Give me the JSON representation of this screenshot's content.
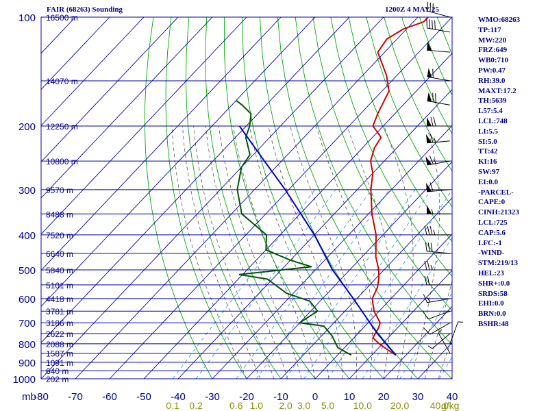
{
  "header": {
    "title": "FAIR (68263) Sounding",
    "datetime": "1200Z  4 MAY 25"
  },
  "indices": [
    "WMO:68263",
    "TP:117",
    "MW:220",
    "FRZ:649",
    "WB0:710",
    "PW:0.47",
    "RH:39.0",
    "MAXT:17.2",
    "TH:5639",
    "L57:5.4",
    "LCL:748",
    "LI:5.5",
    "SI:5.0",
    "TT:42",
    "KI:16",
    "SW:97",
    "EI:0.0",
    "-PARCEL-",
    "CAPE:0",
    "CINH:21323",
    "LCL:725",
    "CAP:5.6",
    "LFC:-1",
    "-WIND-",
    "STM:219/13",
    "HEL:23",
    "SHR+:0.0",
    "SRDS:58",
    "EHI:0.0",
    "BRN:0.0",
    "BSHR:48"
  ],
  "colors": {
    "grid": "#0000aa",
    "dry_adiabats": "#00aa00",
    "moist_adiabats": "#555555",
    "mixing_ratio": "#3399ff",
    "temperature": "#cc0000",
    "dewpoint": "#005500",
    "parcel": "#0000cc",
    "wind": "#000000",
    "text": "#00008b",
    "mr_labels": "#8b8b00"
  },
  "chart_data": {
    "type": "line",
    "title": "FAIR (68263) Sounding",
    "pressure_unit_label": "mb",
    "pressure_ticks": [
      100,
      200,
      300,
      400,
      500,
      600,
      700,
      800,
      900,
      1000
    ],
    "temperature_ticks": [
      -80,
      -70,
      -60,
      -50,
      -40,
      -30,
      -20,
      -10,
      0,
      10,
      20,
      30,
      40
    ],
    "xlim": [
      -80,
      40
    ],
    "ylim": [
      1000,
      100
    ],
    "y_scale": "log",
    "skew_degC_per_decade": 100,
    "height_labels": [
      {
        "p": 100,
        "label": "16500 m"
      },
      {
        "p": 150,
        "label": "14070 m"
      },
      {
        "p": 200,
        "label": "12250 m"
      },
      {
        "p": 250,
        "label": "10800 m"
      },
      {
        "p": 300,
        "label": "9570 m"
      },
      {
        "p": 350,
        "label": "8488 m"
      },
      {
        "p": 400,
        "label": "7520 m"
      },
      {
        "p": 450,
        "label": "6640 m"
      },
      {
        "p": 500,
        "label": "5840 m"
      },
      {
        "p": 550,
        "label": "5101 m"
      },
      {
        "p": 600,
        "label": "4418 m"
      },
      {
        "p": 650,
        "label": "3781 m"
      },
      {
        "p": 700,
        "label": "3186 m"
      },
      {
        "p": 750,
        "label": "2622 m"
      },
      {
        "p": 800,
        "label": "2088 m"
      },
      {
        "p": 850,
        "label": "1587 m"
      },
      {
        "p": 900,
        "label": "1091 m"
      },
      {
        "p": 950,
        "label": "640 m"
      },
      {
        "p": 1000,
        "label": "202 m"
      }
    ],
    "mixing_ratio_labels": [
      {
        "w": 0.1,
        "label": "0.1"
      },
      {
        "w": 0.2,
        "label": "0.2"
      },
      {
        "w": 0.6,
        "label": "0.6"
      },
      {
        "w": 1.0,
        "label": "1.0"
      },
      {
        "w": 2.0,
        "label": "2.0"
      },
      {
        "w": 3.0,
        "label": "3.0"
      },
      {
        "w": 5.0,
        "label": "5.0"
      },
      {
        "w": 10.0,
        "label": "10.0"
      },
      {
        "w": 20.0,
        "label": "20.0"
      },
      {
        "w": 40.0,
        "label": "40.0"
      }
    ],
    "mixing_ratio_unit": "g/kg",
    "series": [
      {
        "key": "temperature",
        "points": [
          {
            "p": 860,
            "t": 17.0
          },
          {
            "p": 830,
            "t": 13.0
          },
          {
            "p": 800,
            "t": 9.0
          },
          {
            "p": 770,
            "t": 5.5
          },
          {
            "p": 725,
            "t": 4.5
          },
          {
            "p": 700,
            "t": 3.5
          },
          {
            "p": 650,
            "t": -1.5
          },
          {
            "p": 600,
            "t": -5.5
          },
          {
            "p": 560,
            "t": -7.0
          },
          {
            "p": 530,
            "t": -9.0
          },
          {
            "p": 500,
            "t": -11.5
          },
          {
            "p": 460,
            "t": -16.0
          },
          {
            "p": 400,
            "t": -22.0
          },
          {
            "p": 350,
            "t": -29.0
          },
          {
            "p": 300,
            "t": -36.0
          },
          {
            "p": 270,
            "t": -40.0
          },
          {
            "p": 250,
            "t": -44.0
          },
          {
            "p": 230,
            "t": -46.5
          },
          {
            "p": 215,
            "t": -47.5
          },
          {
            "p": 200,
            "t": -53.0
          },
          {
            "p": 185,
            "t": -55.0
          },
          {
            "p": 160,
            "t": -58.0
          },
          {
            "p": 145,
            "t": -63.0
          },
          {
            "p": 125,
            "t": -72.0
          },
          {
            "p": 115,
            "t": -73.0
          },
          {
            "p": 108,
            "t": -71.0
          },
          {
            "p": 103,
            "t": -67.0
          },
          {
            "p": 100,
            "t": -67.0
          }
        ]
      },
      {
        "key": "dewpoint",
        "points": [
          {
            "p": 860,
            "t": 4.0
          },
          {
            "p": 820,
            "t": -2.0
          },
          {
            "p": 760,
            "t": -7.0
          },
          {
            "p": 715,
            "t": -12.0
          },
          {
            "p": 700,
            "t": -20.0
          },
          {
            "p": 650,
            "t": -18.0
          },
          {
            "p": 610,
            "t": -23.0
          },
          {
            "p": 580,
            "t": -32.0
          },
          {
            "p": 530,
            "t": -41.5
          },
          {
            "p": 515,
            "t": -51.0
          },
          {
            "p": 490,
            "t": -32.0
          },
          {
            "p": 470,
            "t": -40.0
          },
          {
            "p": 440,
            "t": -50.0
          },
          {
            "p": 400,
            "t": -54.0
          },
          {
            "p": 350,
            "t": -67.0
          },
          {
            "p": 300,
            "t": -75.0
          },
          {
            "p": 260,
            "t": -80.0
          },
          {
            "p": 240,
            "t": -81.0
          },
          {
            "p": 215,
            "t": -87.0
          },
          {
            "p": 200,
            "t": -89.0
          },
          {
            "p": 185,
            "t": -92.0
          },
          {
            "p": 175,
            "t": -97.0
          },
          {
            "p": 170,
            "t": -100.0
          }
        ]
      },
      {
        "key": "parcel",
        "points": [
          {
            "p": 860,
            "t": 17.0
          },
          {
            "p": 800,
            "t": 11.0
          },
          {
            "p": 748,
            "t": 5.5
          },
          {
            "p": 700,
            "t": 0.5
          },
          {
            "p": 600,
            "t": -11.0
          },
          {
            "p": 500,
            "t": -25.0
          },
          {
            "p": 400,
            "t": -40.0
          },
          {
            "p": 300,
            "t": -61.0
          },
          {
            "p": 250,
            "t": -75.0
          },
          {
            "p": 200,
            "t": -92.0
          }
        ]
      }
    ],
    "winds": [
      {
        "p": 850,
        "dir": 330,
        "spd": 5
      },
      {
        "p": 800,
        "dir": 20,
        "spd": 5
      },
      {
        "p": 750,
        "dir": 230,
        "spd": 5
      },
      {
        "p": 700,
        "dir": 240,
        "spd": 10
      },
      {
        "p": 650,
        "dir": 250,
        "spd": 10
      },
      {
        "p": 600,
        "dir": 260,
        "spd": 15
      },
      {
        "p": 550,
        "dir": 270,
        "spd": 20
      },
      {
        "p": 500,
        "dir": 270,
        "spd": 25
      },
      {
        "p": 450,
        "dir": 275,
        "spd": 30
      },
      {
        "p": 400,
        "dir": 270,
        "spd": 35
      },
      {
        "p": 350,
        "dir": 270,
        "spd": 55
      },
      {
        "p": 300,
        "dir": 265,
        "spd": 60
      },
      {
        "p": 250,
        "dir": 260,
        "spd": 65
      },
      {
        "p": 220,
        "dir": 265,
        "spd": 65
      },
      {
        "p": 200,
        "dir": 270,
        "spd": 70
      },
      {
        "p": 175,
        "dir": 280,
        "spd": 70
      },
      {
        "p": 150,
        "dir": 280,
        "spd": 60
      },
      {
        "p": 125,
        "dir": 275,
        "spd": 50
      },
      {
        "p": 110,
        "dir": 280,
        "spd": 40
      },
      {
        "p": 100,
        "dir": 285,
        "spd": 30
      }
    ]
  }
}
